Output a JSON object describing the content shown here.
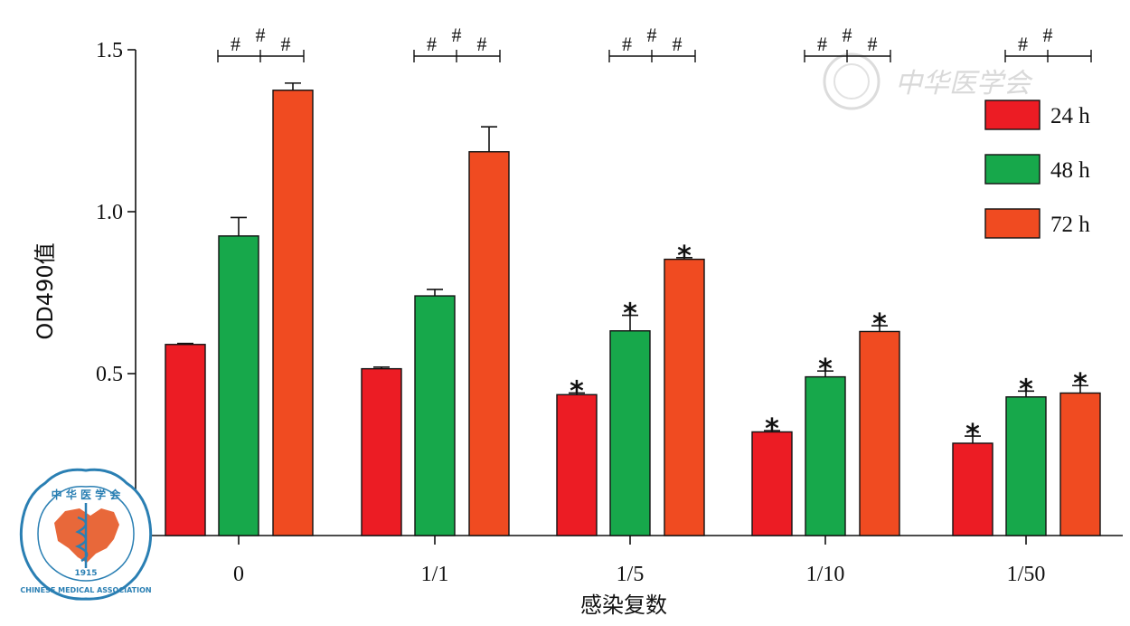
{
  "chart_data": {
    "type": "bar",
    "xlabel": "感染复数",
    "ylabel": "OD490值",
    "ylim": [
      0,
      1.5
    ],
    "yticks": [
      "0.0",
      "0.5",
      "1.0",
      "1.5"
    ],
    "categories": [
      "0",
      "1/1",
      "1/5",
      "1/10",
      "1/50"
    ],
    "series": [
      {
        "name": "24 h",
        "color": "#ec1c24",
        "values": [
          0.59,
          0.515,
          0.435,
          0.32,
          0.285
        ],
        "errors": [
          0.003,
          0.005,
          0.005,
          0.004,
          0.022
        ],
        "stars": [
          false,
          false,
          true,
          true,
          true
        ]
      },
      {
        "name": "48 h",
        "color": "#17a84b",
        "values": [
          0.925,
          0.74,
          0.632,
          0.49,
          0.428
        ],
        "errors": [
          0.057,
          0.02,
          0.048,
          0.018,
          0.018
        ],
        "stars": [
          false,
          false,
          true,
          true,
          true
        ]
      },
      {
        "name": "72 h",
        "color": "#f04b21",
        "values": [
          1.375,
          1.185,
          0.853,
          0.63,
          0.44
        ],
        "errors": [
          0.022,
          0.077,
          0.005,
          0.018,
          0.023
        ],
        "stars": [
          false,
          false,
          true,
          true,
          true
        ]
      }
    ],
    "legend_position": "top-right",
    "star_symbol": "*",
    "significance_brackets": [
      {
        "marks": [
          "#",
          "#",
          "#"
        ]
      },
      {
        "marks": [
          "#",
          "#",
          "#"
        ]
      },
      {
        "marks": [
          "#",
          "#",
          "#"
        ]
      },
      {
        "marks": [
          "#",
          "#",
          "#"
        ]
      },
      {
        "marks": [
          "#",
          "#"
        ]
      }
    ]
  },
  "watermark": {
    "text": "中华医学会",
    "seal_text_top": "中 华 医 学 会",
    "seal_text_bottom": "CHINESE MEDICAL ASSOCIATION",
    "seal_year": "1915"
  }
}
